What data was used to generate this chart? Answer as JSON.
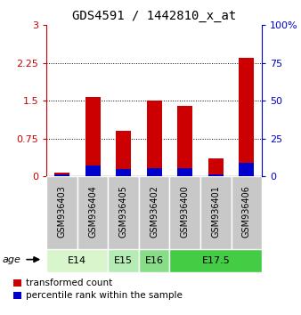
{
  "title": "GDS4591 / 1442810_x_at",
  "samples": [
    "GSM936403",
    "GSM936404",
    "GSM936405",
    "GSM936402",
    "GSM936400",
    "GSM936401",
    "GSM936406"
  ],
  "transformed_count": [
    0.07,
    1.57,
    0.9,
    1.5,
    1.4,
    0.35,
    2.35
  ],
  "percentile_rank_scaled": [
    0.04,
    0.21,
    0.15,
    0.16,
    0.17,
    0.04,
    0.27
  ],
  "age_groups": [
    {
      "label": "E14",
      "start": 0,
      "end": 2,
      "color": "#d8f5cc"
    },
    {
      "label": "E15",
      "start": 2,
      "end": 3,
      "color": "#b5ebb5"
    },
    {
      "label": "E16",
      "start": 3,
      "end": 4,
      "color": "#88dd88"
    },
    {
      "label": "E17.5",
      "start": 4,
      "end": 7,
      "color": "#44cc44"
    }
  ],
  "bar_color_red": "#cc0000",
  "bar_color_blue": "#0000cc",
  "ylim_left": [
    0,
    3
  ],
  "ylim_right": [
    0,
    100
  ],
  "yticks_left": [
    0,
    0.75,
    1.5,
    2.25,
    3
  ],
  "yticks_right": [
    0,
    25,
    50,
    75,
    100
  ],
  "ytick_labels_left": [
    "0",
    "0.75",
    "1.5",
    "2.25",
    "3"
  ],
  "ytick_labels_right": [
    "0",
    "25",
    "50",
    "75",
    "100%"
  ],
  "bar_width": 0.5,
  "legend_red_label": "transformed count",
  "legend_blue_label": "percentile rank within the sample",
  "gray_box_color": "#c8c8c8"
}
